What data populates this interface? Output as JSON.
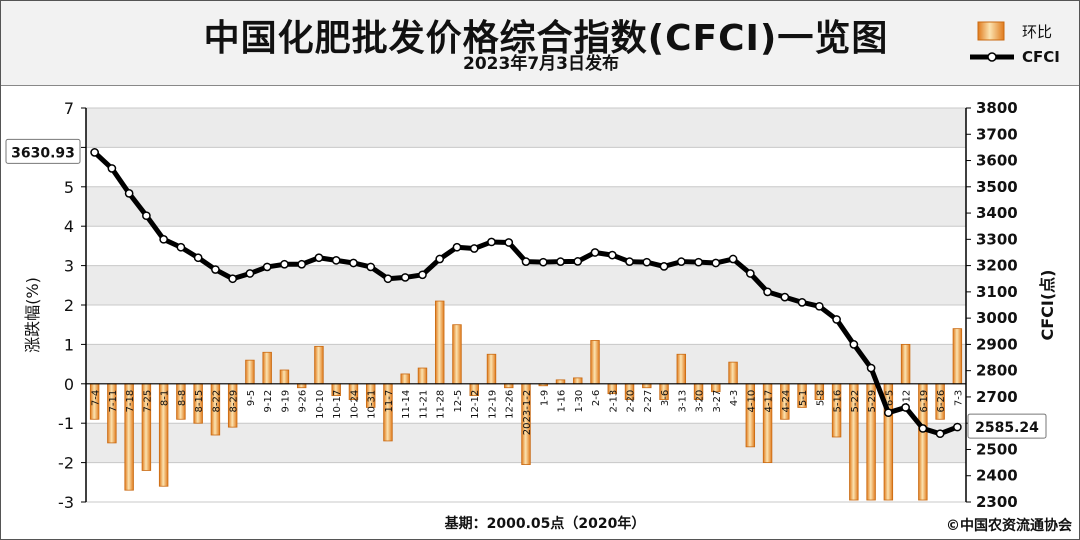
{
  "chart_data": {
    "type": "bar+line",
    "title": "中国化肥批发价格综合指数(CFCI)一览图",
    "subtitle": "2023年7月3日发布",
    "footer_base": "基期：2000.05点（2020年）",
    "copyright": "©中国农资流通协会",
    "ylabel_left": "涨跌幅(%)",
    "ylabel_right": "CFCI(点)",
    "left_axis": {
      "min": -3,
      "max": 7,
      "ticks": [
        -3,
        -2,
        -1,
        0,
        1,
        2,
        3,
        4,
        5,
        6,
        7
      ]
    },
    "right_axis": {
      "min": 2300,
      "max": 3800,
      "ticks": [
        2300,
        2400,
        2500,
        2600,
        2700,
        2800,
        2900,
        3000,
        3100,
        3200,
        3300,
        3400,
        3500,
        3600,
        3700,
        3800
      ]
    },
    "legend": {
      "position": "top-right",
      "bar_label": "环比",
      "line_label": "CFCI"
    },
    "start_annotation": "3630.93",
    "end_annotation": "2585.24",
    "categories": [
      "7-4",
      "7-11",
      "7-18",
      "7-25",
      "8-1",
      "8-8",
      "8-15",
      "8-22",
      "8-29",
      "9-5",
      "9-12",
      "9-19",
      "9-26",
      "10-10",
      "10-17",
      "10-24",
      "10-31",
      "11-7",
      "11-14",
      "11-21",
      "11-28",
      "12-5",
      "12-12",
      "12-19",
      "12-26",
      "2023-1-2",
      "1-9",
      "1-16",
      "1-30",
      "2-6",
      "2-13",
      "2-20",
      "2-27",
      "3-6",
      "3-13",
      "3-20",
      "3-27",
      "4-3",
      "4-10",
      "4-17",
      "4-24",
      "5-1",
      "5-8",
      "5-16",
      "5-22",
      "5-29",
      "6-5",
      "6-12",
      "6-19",
      "6-26",
      "7-3"
    ],
    "series": [
      {
        "name": "环比",
        "type": "bar",
        "values": [
          -0.9,
          -1.5,
          -2.7,
          -2.2,
          -2.6,
          -0.9,
          -1.0,
          -1.3,
          -1.1,
          0.6,
          0.8,
          0.35,
          -0.1,
          0.95,
          -0.3,
          -0.4,
          -0.6,
          -1.45,
          0.25,
          0.4,
          2.1,
          1.5,
          -0.3,
          0.75,
          -0.1,
          -2.05,
          -0.05,
          0.1,
          0.15,
          1.1,
          -0.25,
          -0.4,
          -0.1,
          -0.4,
          0.75,
          -0.4,
          -0.2,
          0.55,
          -1.6,
          -2.0,
          -0.9,
          -0.6,
          -0.4,
          -1.35,
          -2.95,
          -2.95,
          -2.95,
          1.0,
          -2.95,
          -0.9,
          1.4
        ]
      },
      {
        "name": "CFCI",
        "type": "line",
        "values": [
          3630.93,
          3570,
          3475,
          3390,
          3300,
          3270,
          3230,
          3185,
          3150,
          3170,
          3195,
          3205,
          3205,
          3230,
          3220,
          3210,
          3195,
          3150,
          3155,
          3165,
          3225,
          3270,
          3265,
          3290,
          3288,
          3215,
          3213,
          3215,
          3216,
          3250,
          3240,
          3215,
          3213,
          3197,
          3215,
          3213,
          3210,
          3225,
          3170,
          3100,
          3080,
          3060,
          3045,
          2995,
          2900,
          2810,
          2640,
          2660,
          2580,
          2560,
          2585.24
        ]
      }
    ]
  }
}
